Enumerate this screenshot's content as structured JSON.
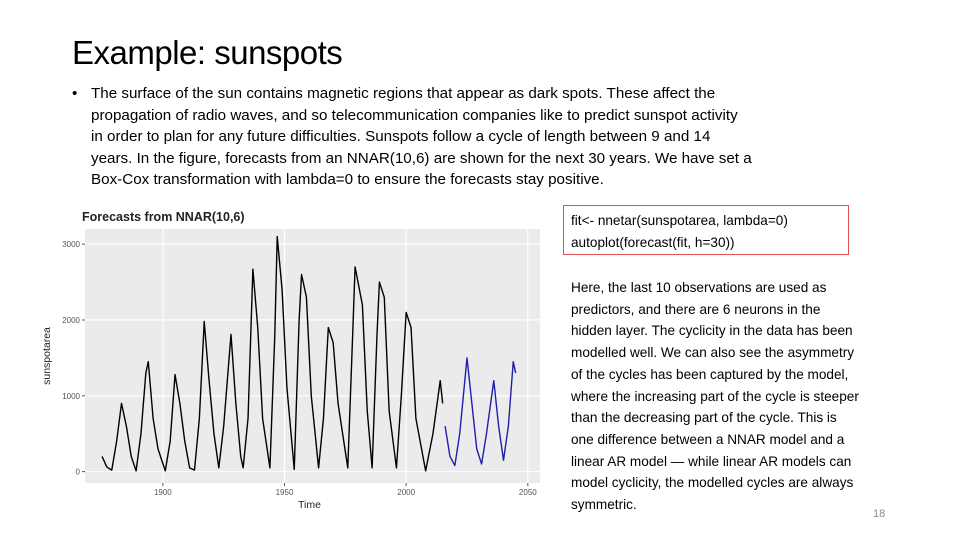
{
  "slide": {
    "title": "Example: sunspots",
    "bullet_lines": [
      "The surface of the sun contains magnetic regions that appear as dark spots. These affect the",
      "propagation of radio waves, and so telecommunication companies like to predict sunspot activity",
      "in order to plan for any future difficulties. Sunspots follow a cycle of length between 9 and 14",
      "years. In the figure, forecasts from an NNAR(10,6) are shown for the next 30 years. We have set a",
      "Box-Cox transformation with lambda=0 to ensure the forecasts stay positive."
    ],
    "code_lines": [
      "fit<- nnetar(sunspotarea, lambda=0)",
      "autoplot(forecast(fit, h=30))"
    ],
    "note_lines": [
      "Here, the last 10 observations are used as",
      "predictors, and there are 6 neurons in the",
      "hidden layer. The cyclicity in the data has been",
      "modelled well. We can also see the asymmetry",
      "of the cycles has been captured by the model,",
      "where the increasing part of the cycle is steeper",
      "than the decreasing part of the cycle. This is",
      "one difference between a NNAR model and a",
      "linear AR model — while linear AR models can",
      "model cyclicity, the modelled cycles are always",
      "symmetric."
    ],
    "page_number": "18"
  },
  "chart_data": {
    "type": "line",
    "title": "Forecasts from NNAR(10,6)",
    "x_label": "Time",
    "y_label": "sunspotarea",
    "xlim": [
      1868,
      2055
    ],
    "xticks": [
      1900,
      1950,
      2000,
      2050
    ],
    "ylim": [
      -150,
      3200
    ],
    "yticks": [
      0,
      1000,
      2000,
      3000
    ],
    "grid": true,
    "series": [
      {
        "color": "#000000",
        "x": [
          1875,
          1877,
          1879,
          1881,
          1883,
          1885,
          1887,
          1889,
          1891,
          1893,
          1894,
          1896,
          1898,
          1901,
          1903,
          1905,
          1907,
          1909,
          1911,
          1913,
          1915,
          1917,
          1919,
          1921,
          1923,
          1925,
          1928,
          1930,
          1932,
          1933,
          1935,
          1937,
          1939,
          1941,
          1944,
          1946,
          1947,
          1949,
          1951,
          1954,
          1956,
          1957,
          1959,
          1961,
          1964,
          1966,
          1968,
          1970,
          1972,
          1976,
          1978,
          1979,
          1982,
          1984,
          1986,
          1988,
          1989,
          1991,
          1993,
          1996,
          1998,
          2000,
          2002,
          2004,
          2008,
          2011,
          2014,
          2015
        ],
        "values": [
          200,
          60,
          20,
          400,
          900,
          600,
          200,
          10,
          500,
          1300,
          1450,
          700,
          300,
          10,
          400,
          1280,
          900,
          400,
          50,
          20,
          700,
          1980,
          1200,
          500,
          50,
          600,
          1810,
          900,
          200,
          50,
          700,
          2670,
          1900,
          700,
          50,
          1800,
          3100,
          2400,
          1100,
          30,
          2000,
          2600,
          2300,
          1000,
          50,
          700,
          1900,
          1700,
          900,
          50,
          1800,
          2700,
          2200,
          800,
          50,
          1800,
          2500,
          2300,
          800,
          50,
          1000,
          2100,
          1900,
          700,
          10,
          500,
          1200,
          900
        ]
      },
      {
        "color": "#1f1fa8",
        "x": [
          2016,
          2018,
          2020,
          2022,
          2025,
          2027,
          2029,
          2031,
          2033,
          2036,
          2038,
          2040,
          2042,
          2044,
          2045
        ],
        "values": [
          600,
          200,
          80,
          500,
          1500,
          900,
          300,
          100,
          500,
          1200,
          600,
          150,
          600,
          1450,
          1300
        ]
      }
    ]
  }
}
